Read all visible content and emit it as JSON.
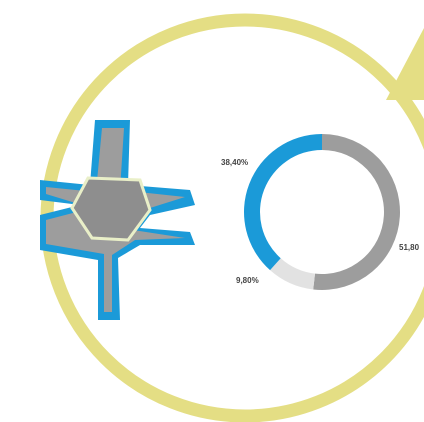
{
  "chart_data": {
    "type": "donut",
    "values": [
      51.8,
      9.8,
      38.4
    ],
    "value_labels": [
      "51,80",
      "9,80%",
      "38,40%"
    ],
    "colors": [
      "#9d9d9d",
      "#e2e2e2",
      "#1b9ad8"
    ]
  }
}
